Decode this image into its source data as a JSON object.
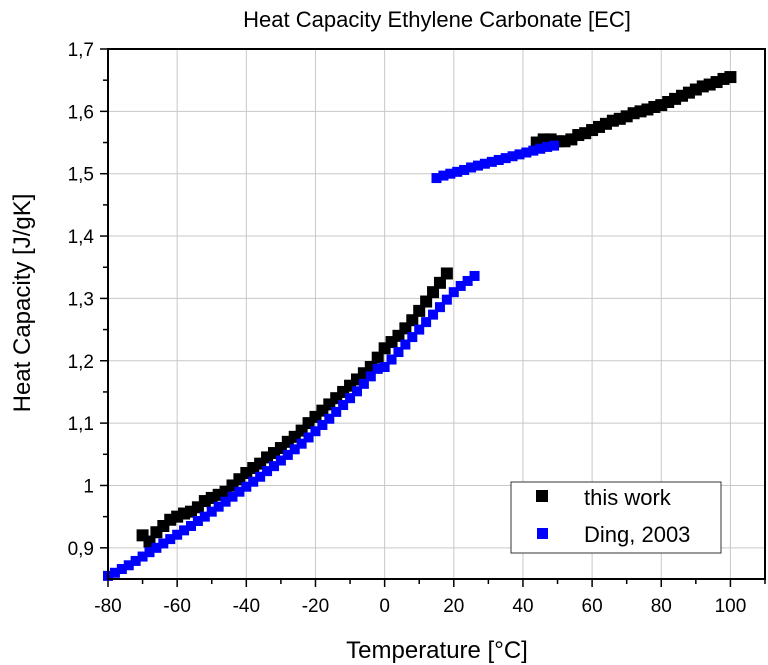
{
  "chart_data": {
    "type": "scatter",
    "title": "Heat Capacity Ethylene Carbonate [EC]",
    "xlabel": "Temperature [°C]",
    "ylabel": "Heat Capacity [J/gK]",
    "xlim": [
      -80,
      110
    ],
    "ylim": [
      0.85,
      1.7
    ],
    "grid": true,
    "legend_position": "bottom-right",
    "x_ticks": [
      -80,
      -60,
      -40,
      -20,
      0,
      20,
      40,
      60,
      80,
      100
    ],
    "x_tick_labels": [
      "-80",
      "-60",
      "-40",
      "-20",
      "0",
      "20",
      "40",
      "60",
      "80",
      "100"
    ],
    "y_ticks": [
      0.9,
      1.0,
      1.1,
      1.2,
      1.3,
      1.4,
      1.5,
      1.6,
      1.7
    ],
    "y_tick_labels": [
      "0,9",
      "1",
      "1,1",
      "1,2",
      "1,3",
      "1,4",
      "1,5",
      "1,6",
      "1,7"
    ],
    "series": [
      {
        "name": "this work",
        "color": "#000000",
        "marker": "square",
        "points": [
          [
            -70,
            0.92
          ],
          [
            -68,
            0.91
          ],
          [
            -66,
            0.925
          ],
          [
            -64,
            0.935
          ],
          [
            -62,
            0.945
          ],
          [
            -60,
            0.95
          ],
          [
            -58,
            0.955
          ],
          [
            -56,
            0.958
          ],
          [
            -54,
            0.965
          ],
          [
            -52,
            0.975
          ],
          [
            -50,
            0.98
          ],
          [
            -48,
            0.985
          ],
          [
            -46,
            0.99
          ],
          [
            -44,
            1.0
          ],
          [
            -42,
            1.01
          ],
          [
            -40,
            1.02
          ],
          [
            -38,
            1.028
          ],
          [
            -36,
            1.035
          ],
          [
            -34,
            1.045
          ],
          [
            -32,
            1.052
          ],
          [
            -30,
            1.06
          ],
          [
            -28,
            1.07
          ],
          [
            -26,
            1.078
          ],
          [
            -24,
            1.088
          ],
          [
            -22,
            1.1
          ],
          [
            -20,
            1.11
          ],
          [
            -18,
            1.12
          ],
          [
            -16,
            1.13
          ],
          [
            -14,
            1.14
          ],
          [
            -12,
            1.15
          ],
          [
            -10,
            1.16
          ],
          [
            -8,
            1.17
          ],
          [
            -6,
            1.18
          ],
          [
            -4,
            1.19
          ],
          [
            -2,
            1.205
          ],
          [
            0,
            1.22
          ],
          [
            2,
            1.23
          ],
          [
            4,
            1.24
          ],
          [
            6,
            1.252
          ],
          [
            8,
            1.265
          ],
          [
            10,
            1.28
          ],
          [
            12,
            1.295
          ],
          [
            14,
            1.31
          ],
          [
            16,
            1.325
          ],
          [
            18,
            1.34
          ],
          [
            44,
            1.55
          ],
          [
            46,
            1.555
          ],
          [
            48,
            1.555
          ],
          [
            50,
            1.552
          ],
          [
            52,
            1.552
          ],
          [
            54,
            1.555
          ],
          [
            56,
            1.562
          ],
          [
            58,
            1.565
          ],
          [
            60,
            1.57
          ],
          [
            62,
            1.575
          ],
          [
            64,
            1.58
          ],
          [
            66,
            1.585
          ],
          [
            68,
            1.588
          ],
          [
            70,
            1.592
          ],
          [
            72,
            1.597
          ],
          [
            74,
            1.6
          ],
          [
            76,
            1.603
          ],
          [
            78,
            1.607
          ],
          [
            80,
            1.61
          ],
          [
            82,
            1.615
          ],
          [
            84,
            1.62
          ],
          [
            86,
            1.625
          ],
          [
            88,
            1.63
          ],
          [
            90,
            1.635
          ],
          [
            92,
            1.64
          ],
          [
            94,
            1.643
          ],
          [
            96,
            1.647
          ],
          [
            98,
            1.652
          ],
          [
            100,
            1.655
          ]
        ]
      },
      {
        "name": "Ding, 2003",
        "color": "#0000ff",
        "marker": "square",
        "points": [
          [
            -80,
            0.855
          ],
          [
            -78,
            0.86
          ],
          [
            -76,
            0.866
          ],
          [
            -74,
            0.872
          ],
          [
            -72,
            0.879
          ],
          [
            -70,
            0.886
          ],
          [
            -68,
            0.893
          ],
          [
            -66,
            0.9
          ],
          [
            -64,
            0.907
          ],
          [
            -62,
            0.914
          ],
          [
            -60,
            0.921
          ],
          [
            -58,
            0.928
          ],
          [
            -56,
            0.935
          ],
          [
            -54,
            0.943
          ],
          [
            -52,
            0.95
          ],
          [
            -50,
            0.958
          ],
          [
            -48,
            0.966
          ],
          [
            -46,
            0.974
          ],
          [
            -44,
            0.982
          ],
          [
            -42,
            0.99
          ],
          [
            -40,
            0.998
          ],
          [
            -38,
            1.006
          ],
          [
            -36,
            1.014
          ],
          [
            -34,
            1.023
          ],
          [
            -32,
            1.031
          ],
          [
            -30,
            1.04
          ],
          [
            -28,
            1.049
          ],
          [
            -26,
            1.058
          ],
          [
            -24,
            1.067
          ],
          [
            -22,
            1.077
          ],
          [
            -20,
            1.087
          ],
          [
            -18,
            1.097
          ],
          [
            -16,
            1.107
          ],
          [
            -14,
            1.118
          ],
          [
            -12,
            1.129
          ],
          [
            -10,
            1.14
          ],
          [
            -8,
            1.151
          ],
          [
            -6,
            1.163
          ],
          [
            -4,
            1.175
          ],
          [
            -2,
            1.187
          ],
          [
            0,
            1.19
          ],
          [
            2,
            1.202
          ],
          [
            4,
            1.214
          ],
          [
            6,
            1.226
          ],
          [
            8,
            1.238
          ],
          [
            10,
            1.25
          ],
          [
            12,
            1.262
          ],
          [
            14,
            1.274
          ],
          [
            16,
            1.286
          ],
          [
            18,
            1.298
          ],
          [
            20,
            1.31
          ],
          [
            22,
            1.32
          ],
          [
            24,
            1.328
          ],
          [
            26,
            1.336
          ],
          [
            15,
            1.493
          ],
          [
            17,
            1.497
          ],
          [
            19,
            1.5
          ],
          [
            21,
            1.503
          ],
          [
            23,
            1.506
          ],
          [
            25,
            1.51
          ],
          [
            27,
            1.513
          ],
          [
            29,
            1.516
          ],
          [
            31,
            1.519
          ],
          [
            33,
            1.522
          ],
          [
            35,
            1.525
          ],
          [
            37,
            1.528
          ],
          [
            39,
            1.531
          ],
          [
            41,
            1.534
          ],
          [
            43,
            1.537
          ],
          [
            45,
            1.54
          ],
          [
            47,
            1.543
          ],
          [
            49,
            1.545
          ]
        ]
      }
    ]
  }
}
